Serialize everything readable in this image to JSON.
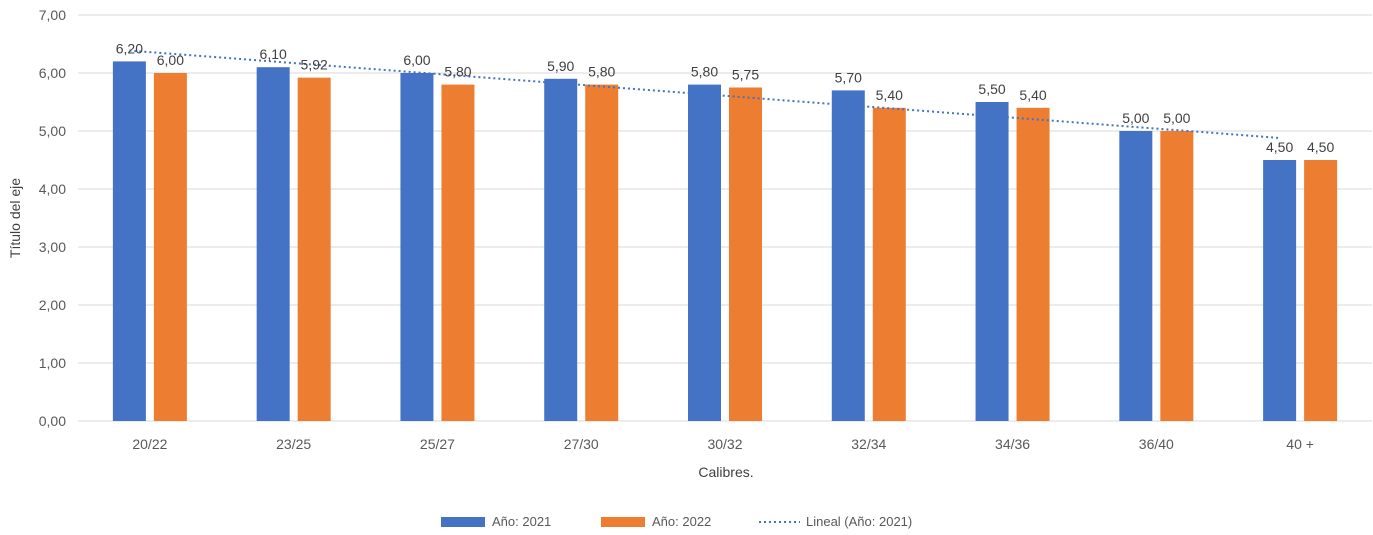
{
  "chart_data": {
    "type": "bar",
    "categories": [
      "20/22",
      "23/25",
      "25/27",
      "27/30",
      "30/32",
      "32/34",
      "34/36",
      "36/40",
      "40 +"
    ],
    "series": [
      {
        "name": "Año: 2021",
        "color": "#4472C4",
        "values": [
          6.2,
          6.1,
          6.0,
          5.9,
          5.8,
          5.7,
          5.5,
          5.0,
          4.5
        ],
        "labels": [
          "6,20",
          "6,10",
          "6,00",
          "5,90",
          "5,80",
          "5,70",
          "5,50",
          "5,00",
          "4,50"
        ]
      },
      {
        "name": "Año: 2022",
        "color": "#ED7D31",
        "values": [
          6.0,
          5.92,
          5.8,
          5.8,
          5.75,
          5.4,
          5.4,
          5.0,
          4.5
        ],
        "labels": [
          "6,00",
          "5,92",
          "5,80",
          "5,80",
          "5,75",
          "5,40",
          "5,40",
          "5,00",
          "4,50"
        ]
      }
    ],
    "trendline": {
      "name": "Lineal (Año: 2021)",
      "series": "Año: 2021",
      "style": "dotted",
      "color": "#4472C4"
    },
    "xlabel": "Calibres.",
    "ylabel": "Título del eje",
    "ylim": [
      0,
      7
    ],
    "yticks": [
      "0,00",
      "1,00",
      "2,00",
      "3,00",
      "4,00",
      "5,00",
      "6,00",
      "7,00"
    ],
    "grid": true,
    "legend_position": "bottom"
  }
}
